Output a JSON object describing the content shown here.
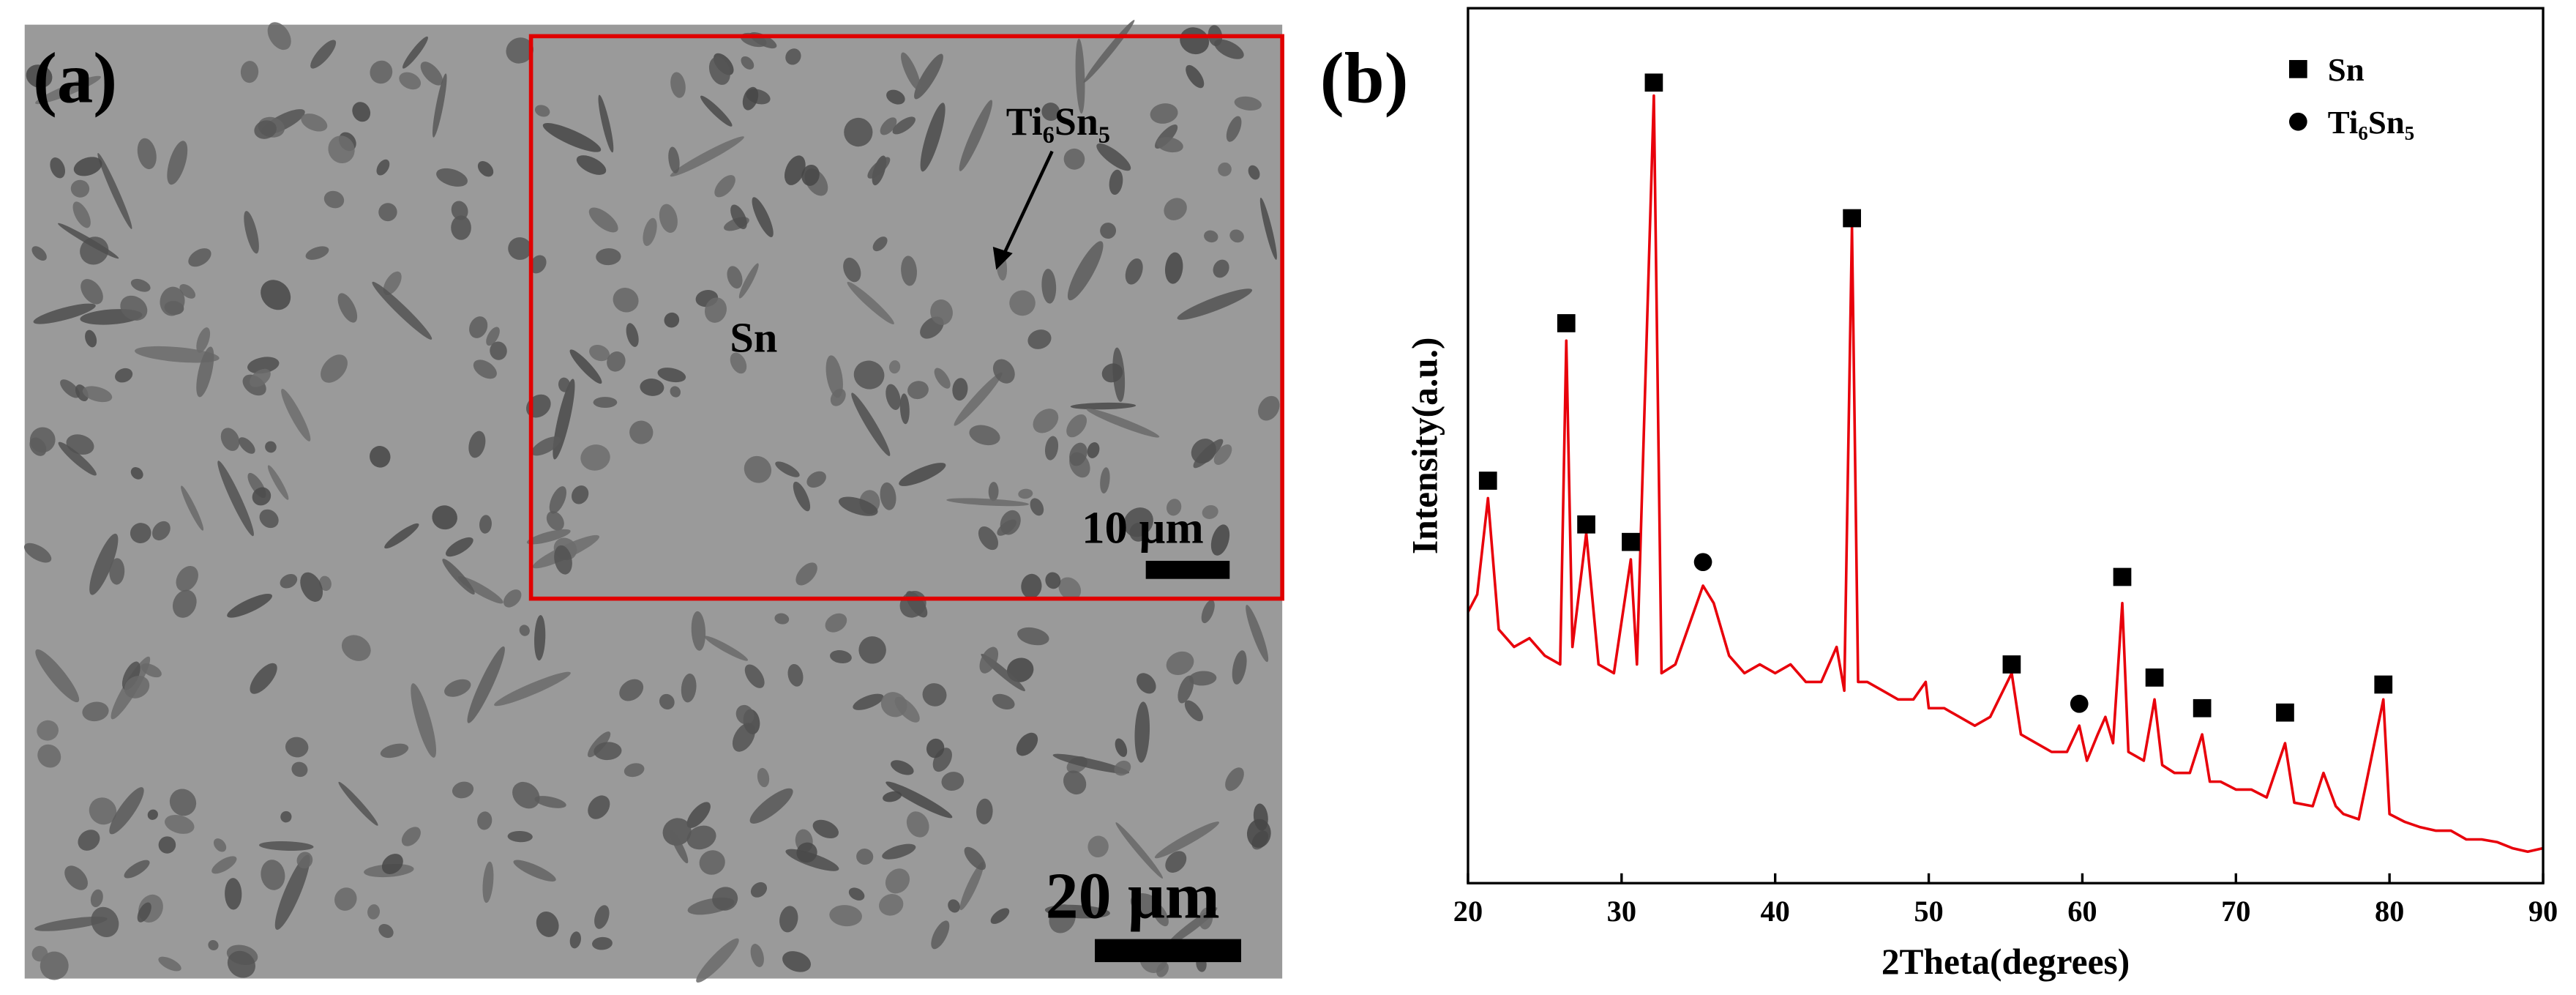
{
  "panel_a": {
    "label": "(a)",
    "phase_label": "Ti₆Sn₅",
    "matrix_label": "Sn",
    "inset_scale": "10 μm",
    "main_scale": "20 μm"
  },
  "chart_data": {
    "type": "line",
    "panel_label": "(b)",
    "xlabel": "2Theta(degrees)",
    "ylabel": "Intensity(a.u.)",
    "color": "#e8000b",
    "x": [
      20,
      20.6,
      21.3,
      22,
      23,
      24,
      25,
      26,
      26.4,
      26.8,
      27.7,
      28.5,
      29.5,
      30.6,
      31,
      32.1,
      32.6,
      33.5,
      34.5,
      35.3,
      36,
      37,
      38,
      39,
      40,
      41,
      42,
      43,
      44,
      44.5,
      45,
      45.4,
      46,
      47,
      48,
      49,
      49.8,
      50,
      51,
      52,
      53,
      54,
      55.4,
      56,
      57,
      58,
      59,
      59.8,
      60.3,
      61,
      61.5,
      62,
      62.6,
      63,
      64,
      64.7,
      65.2,
      66,
      67,
      67.8,
      68.3,
      69,
      70,
      71,
      72,
      73.2,
      73.8,
      75,
      75.7,
      76.5,
      77,
      78,
      79.6,
      80,
      81,
      82,
      83,
      84,
      85,
      86,
      87,
      88,
      89,
      90
    ],
    "values": [
      31,
      33,
      44,
      29,
      27,
      28,
      26,
      25,
      62,
      27,
      40,
      25,
      24,
      37,
      25,
      90,
      24,
      25,
      30,
      34,
      32,
      26,
      24,
      25,
      24,
      25,
      23,
      23,
      27,
      22,
      75,
      23,
      23,
      22,
      21,
      21,
      23,
      20,
      20,
      19,
      18,
      19,
      24,
      17,
      16,
      15,
      15,
      18,
      14,
      17,
      19,
      16,
      32,
      15,
      14,
      21,
      13.5,
      12.6,
      12.6,
      17,
      11.6,
      11.6,
      10.7,
      10.7,
      9.8,
      16,
      9.2,
      8.8,
      12.6,
      8.8,
      7.9,
      7.3,
      21,
      7.9,
      7,
      6.4,
      6,
      6,
      5,
      5,
      4.7,
      4,
      3.6,
      4
    ],
    "markers": [
      {
        "name": "Sn",
        "shape": "square",
        "color": "#000000",
        "x": [
          21.3,
          26.4,
          27.7,
          30.6,
          32.1,
          45,
          55.4,
          62.6,
          64.7,
          67.8,
          73.2,
          79.6
        ],
        "values": [
          46,
          64,
          41,
          39,
          91.5,
          76,
          25,
          35,
          23.5,
          20,
          19.5,
          22.7
        ]
      },
      {
        "name": "Ti₆Sn₅",
        "shape": "circle",
        "color": "#000000",
        "x": [
          35.3,
          59.8
        ],
        "values": [
          36.7,
          20.5
        ]
      }
    ],
    "xlim": [
      20,
      90
    ],
    "xticks": [
      20,
      30,
      40,
      50,
      60,
      70,
      80,
      90
    ],
    "ylim": [
      0,
      100
    ]
  }
}
